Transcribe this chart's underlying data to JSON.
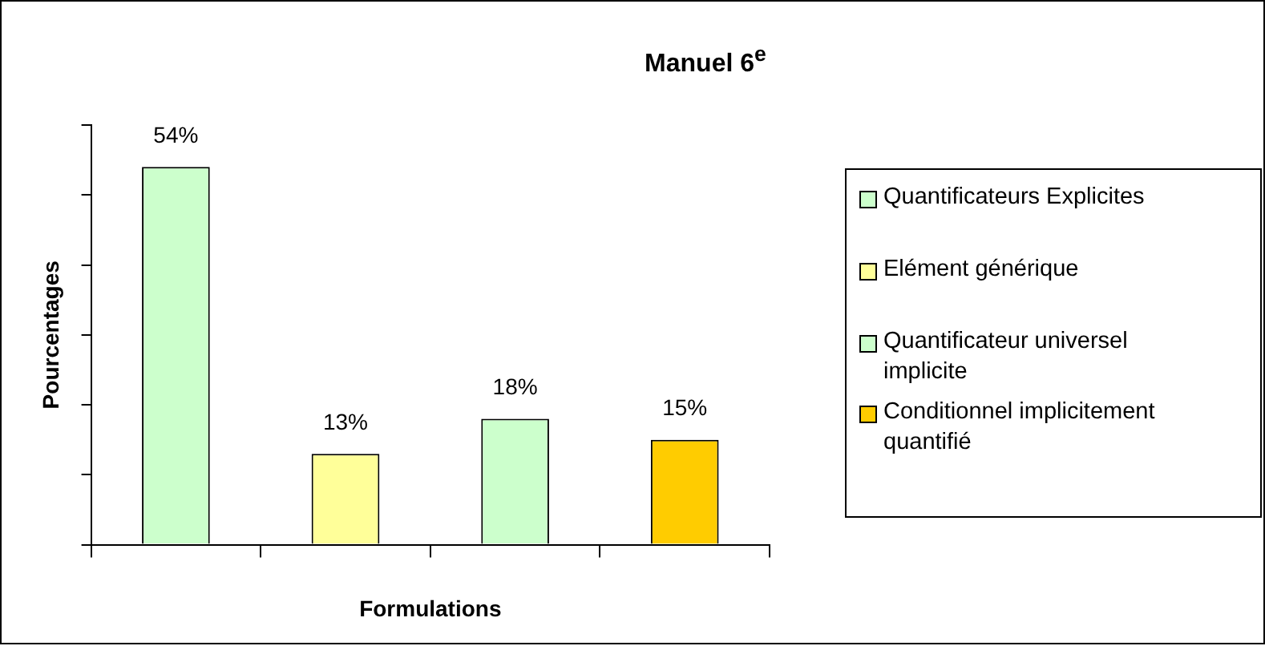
{
  "chart_data": {
    "type": "bar",
    "title": "Manuel 6$^{e}$",
    "xlabel": "Formulations",
    "ylabel": "Pourcentages",
    "categories": [
      null,
      null,
      null,
      null
    ],
    "stacked": true,
    "series": [
      {
        "name": "Quantificateurs Explicites",
        "color": "#ccffcc",
        "values": [
          54,
          null,
          null,
          null
        ],
        "value_labels": [
          "54%",
          null,
          null,
          null
        ]
      },
      {
        "name": "Elément générique",
        "color": "#ffff99",
        "values": [
          null,
          13,
          null,
          null
        ],
        "value_labels": [
          null,
          "13%",
          null,
          null
        ]
      },
      {
        "name": "Quantificateur universel implicite",
        "color": "#ccffcc",
        "values": [
          null,
          null,
          18,
          null
        ],
        "value_labels": [
          null,
          null,
          "18%",
          null
        ]
      },
      {
        "name": "Conditionnel implicitement quantifié",
        "color": "#ffcc00",
        "values": [
          null,
          null,
          null,
          15
        ],
        "value_labels": [
          null,
          null,
          null,
          "15%"
        ]
      }
    ],
    "ylim": [
      0,
      60
    ],
    "yticks": [
      {
        "value": 0,
        "label": null
      },
      {
        "value": 10,
        "label": null
      },
      {
        "value": 20,
        "label": null
      },
      {
        "value": 30,
        "label": null
      },
      {
        "value": 40,
        "label": null
      },
      {
        "value": 50,
        "label": null
      },
      {
        "value": 60,
        "label": null
      }
    ],
    "grid": false,
    "legend": "right"
  }
}
